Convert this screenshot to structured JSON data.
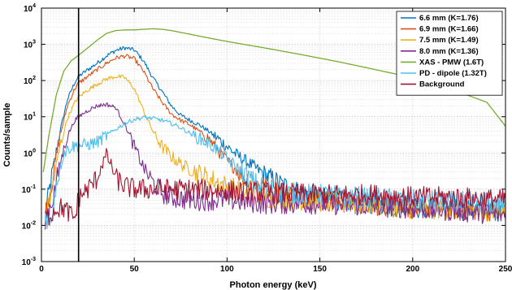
{
  "chart_data": {
    "type": "line",
    "title": "",
    "xlabel": "Photon energy (keV)",
    "ylabel": "Counts/sample",
    "xlim": [
      0,
      250
    ],
    "ylim": [
      0.001,
      10000
    ],
    "yscale": "log",
    "xticks": [
      0,
      50,
      100,
      150,
      200,
      250
    ],
    "yticks": [
      {
        "value": 0.001,
        "base": "10",
        "exp": "-3"
      },
      {
        "value": 0.01,
        "base": "10",
        "exp": "-2"
      },
      {
        "value": 0.1,
        "base": "10",
        "exp": "-1"
      },
      {
        "value": 1,
        "base": "10",
        "exp": "0"
      },
      {
        "value": 10,
        "base": "10",
        "exp": "1"
      },
      {
        "value": 100,
        "base": "10",
        "exp": "2"
      },
      {
        "value": 1000,
        "base": "10",
        "exp": "3"
      },
      {
        "value": 10000,
        "base": "10",
        "exp": "4"
      }
    ],
    "grid": true,
    "legend_position": "top-right",
    "vertical_marker_x": 20,
    "series": [
      {
        "name": "6.6 mm (K=1.76)",
        "color": "#0072BD",
        "noise": 0.03,
        "points": [
          [
            2,
            0.02
          ],
          [
            6,
            0.3
          ],
          [
            10,
            4
          ],
          [
            14,
            30
          ],
          [
            18,
            90
          ],
          [
            20,
            130
          ],
          [
            25,
            200
          ],
          [
            30,
            300
          ],
          [
            35,
            480
          ],
          [
            40,
            680
          ],
          [
            45,
            800
          ],
          [
            50,
            700
          ],
          [
            55,
            350
          ],
          [
            60,
            120
          ],
          [
            65,
            50
          ],
          [
            70,
            20
          ],
          [
            75,
            11
          ],
          [
            80,
            8
          ],
          [
            85,
            6
          ],
          [
            90,
            4
          ],
          [
            95,
            2.5
          ],
          [
            100,
            1.5
          ],
          [
            105,
            0.9
          ],
          [
            110,
            0.6
          ],
          [
            115,
            0.4
          ],
          [
            120,
            0.25
          ],
          [
            125,
            0.18
          ],
          [
            130,
            0.13
          ],
          [
            135,
            0.1
          ],
          [
            140,
            0.08
          ],
          [
            150,
            0.06
          ],
          [
            160,
            0.05
          ],
          [
            170,
            0.04
          ],
          [
            180,
            0.04
          ],
          [
            200,
            0.03
          ],
          [
            220,
            0.03
          ],
          [
            250,
            0.025
          ]
        ]
      },
      {
        "name": "6.9 mm (K=1.66)",
        "color": "#D95319",
        "noise": 0.03,
        "points": [
          [
            2,
            0.02
          ],
          [
            6,
            0.2
          ],
          [
            10,
            3
          ],
          [
            14,
            20
          ],
          [
            18,
            60
          ],
          [
            20,
            85
          ],
          [
            25,
            130
          ],
          [
            30,
            200
          ],
          [
            35,
            300
          ],
          [
            40,
            420
          ],
          [
            45,
            480
          ],
          [
            50,
            400
          ],
          [
            55,
            180
          ],
          [
            60,
            60
          ],
          [
            65,
            25
          ],
          [
            70,
            12
          ],
          [
            75,
            8
          ],
          [
            80,
            6
          ],
          [
            85,
            4
          ],
          [
            90,
            2.5
          ],
          [
            95,
            1.2
          ],
          [
            100,
            0.6
          ],
          [
            105,
            0.35
          ],
          [
            110,
            0.2
          ],
          [
            120,
            0.12
          ],
          [
            130,
            0.08
          ],
          [
            140,
            0.06
          ],
          [
            150,
            0.05
          ],
          [
            170,
            0.04
          ],
          [
            200,
            0.03
          ],
          [
            250,
            0.025
          ]
        ]
      },
      {
        "name": "7.5 mm (K=1.49)",
        "color": "#EDB120",
        "noise": 0.035,
        "points": [
          [
            2,
            0.015
          ],
          [
            6,
            0.12
          ],
          [
            10,
            1.5
          ],
          [
            14,
            9
          ],
          [
            18,
            25
          ],
          [
            20,
            35
          ],
          [
            25,
            55
          ],
          [
            30,
            80
          ],
          [
            35,
            110
          ],
          [
            40,
            130
          ],
          [
            45,
            120
          ],
          [
            50,
            60
          ],
          [
            55,
            15
          ],
          [
            60,
            4
          ],
          [
            65,
            1.5
          ],
          [
            70,
            0.8
          ],
          [
            75,
            0.5
          ],
          [
            80,
            0.35
          ],
          [
            90,
            0.2
          ],
          [
            100,
            0.12
          ],
          [
            110,
            0.08
          ],
          [
            120,
            0.06
          ],
          [
            140,
            0.05
          ],
          [
            170,
            0.04
          ],
          [
            200,
            0.03
          ],
          [
            250,
            0.025
          ]
        ]
      },
      {
        "name": "8.0 mm (K=1.36)",
        "color": "#7E2F8E",
        "noise": 0.035,
        "points": [
          [
            2,
            0.015
          ],
          [
            6,
            0.05
          ],
          [
            10,
            0.5
          ],
          [
            14,
            3
          ],
          [
            18,
            8
          ],
          [
            20,
            10
          ],
          [
            25,
            15
          ],
          [
            30,
            20
          ],
          [
            35,
            22
          ],
          [
            40,
            18
          ],
          [
            45,
            6
          ],
          [
            50,
            1.5
          ],
          [
            55,
            0.4
          ],
          [
            60,
            0.15
          ],
          [
            65,
            0.08
          ],
          [
            70,
            0.06
          ],
          [
            80,
            0.05
          ],
          [
            100,
            0.05
          ],
          [
            120,
            0.04
          ],
          [
            150,
            0.04
          ],
          [
            200,
            0.03
          ],
          [
            250,
            0.02
          ]
        ]
      },
      {
        "name": "XAS - PMW (1.6T)",
        "color": "#77AC30",
        "noise": 0,
        "points": [
          [
            1,
            0.3
          ],
          [
            4,
            3
          ],
          [
            8,
            40
          ],
          [
            12,
            180
          ],
          [
            16,
            350
          ],
          [
            20,
            500
          ],
          [
            25,
            800
          ],
          [
            30,
            1300
          ],
          [
            35,
            2000
          ],
          [
            40,
            2400
          ],
          [
            45,
            2500
          ],
          [
            50,
            2500
          ],
          [
            55,
            2600
          ],
          [
            60,
            2700
          ],
          [
            65,
            2600
          ],
          [
            70,
            2400
          ],
          [
            80,
            1900
          ],
          [
            90,
            1500
          ],
          [
            100,
            1200
          ],
          [
            120,
            800
          ],
          [
            140,
            520
          ],
          [
            160,
            330
          ],
          [
            180,
            200
          ],
          [
            200,
            120
          ],
          [
            220,
            60
          ],
          [
            240,
            25
          ],
          [
            250,
            5.5
          ]
        ]
      },
      {
        "name": "PD - dipole (1.32T)",
        "color": "#4DBEEE",
        "noise": 0.03,
        "points": [
          [
            2,
            0.02
          ],
          [
            5,
            0.01
          ],
          [
            8,
            0.15
          ],
          [
            12,
            1
          ],
          [
            16,
            1.5
          ],
          [
            20,
            1.6
          ],
          [
            25,
            1.7
          ],
          [
            30,
            2
          ],
          [
            35,
            3
          ],
          [
            40,
            4.5
          ],
          [
            45,
            6.5
          ],
          [
            50,
            8.5
          ],
          [
            55,
            9.5
          ],
          [
            60,
            9
          ],
          [
            65,
            8
          ],
          [
            70,
            6.5
          ],
          [
            75,
            5
          ],
          [
            80,
            3.5
          ],
          [
            85,
            2.5
          ],
          [
            90,
            1.8
          ],
          [
            95,
            1.2
          ],
          [
            100,
            0.7
          ],
          [
            105,
            0.4
          ],
          [
            110,
            0.25
          ],
          [
            115,
            0.15
          ],
          [
            120,
            0.1
          ],
          [
            130,
            0.08
          ],
          [
            150,
            0.07
          ],
          [
            200,
            0.05
          ],
          [
            250,
            0.04
          ]
        ]
      },
      {
        "name": "Background",
        "color": "#A2142F",
        "noise": 0.05,
        "points": [
          [
            2,
            0.015
          ],
          [
            8,
            0.03
          ],
          [
            12,
            0.03
          ],
          [
            18,
            0.015
          ],
          [
            20,
            0.06
          ],
          [
            25,
            0.1
          ],
          [
            30,
            0.2
          ],
          [
            32,
            0.4
          ],
          [
            35,
            0.9
          ],
          [
            38,
            0.4
          ],
          [
            40,
            0.2
          ],
          [
            45,
            0.12
          ],
          [
            50,
            0.1
          ],
          [
            60,
            0.1
          ],
          [
            80,
            0.1
          ],
          [
            100,
            0.09
          ],
          [
            120,
            0.08
          ],
          [
            150,
            0.07
          ],
          [
            180,
            0.07
          ],
          [
            200,
            0.06
          ],
          [
            220,
            0.06
          ],
          [
            250,
            0.05
          ]
        ]
      }
    ]
  }
}
